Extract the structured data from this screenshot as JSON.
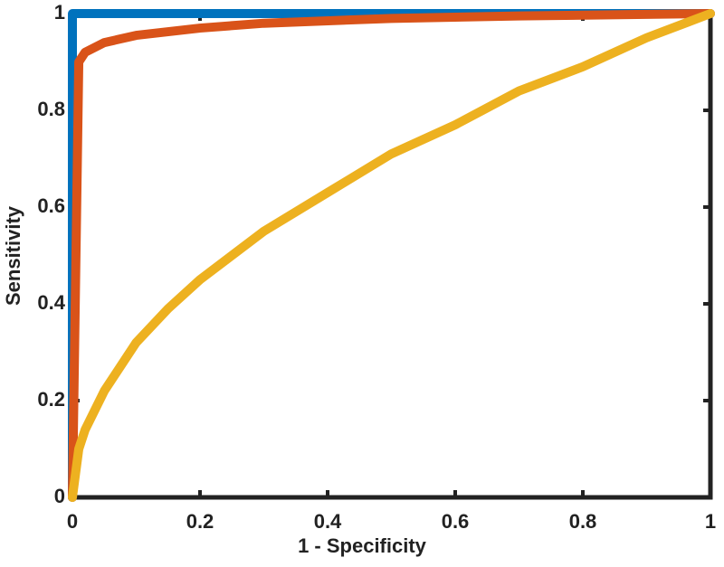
{
  "chart_data": {
    "type": "line",
    "xlabel": "1 - Specificity",
    "ylabel": "Sensitivity",
    "xlim": [
      0,
      1
    ],
    "ylim": [
      0,
      1
    ],
    "xticks": [
      0,
      0.2,
      0.4,
      0.6,
      0.8,
      1
    ],
    "yticks": [
      0,
      0.2,
      0.4,
      0.6,
      0.8,
      1
    ],
    "grid": false,
    "series": [
      {
        "color": "#0072bd",
        "x": [
          0,
          0,
          1
        ],
        "values": [
          0,
          1,
          1
        ]
      },
      {
        "color": "#d95319",
        "x": [
          0,
          0.01,
          0.02,
          0.05,
          0.1,
          0.2,
          0.3,
          0.5,
          0.7,
          1
        ],
        "values": [
          0,
          0.9,
          0.92,
          0.94,
          0.955,
          0.97,
          0.98,
          0.99,
          0.995,
          1
        ]
      },
      {
        "color": "#edb120",
        "x": [
          0,
          0.01,
          0.02,
          0.05,
          0.1,
          0.15,
          0.2,
          0.3,
          0.4,
          0.5,
          0.6,
          0.7,
          0.8,
          0.9,
          1
        ],
        "values": [
          0,
          0.1,
          0.14,
          0.22,
          0.32,
          0.39,
          0.45,
          0.55,
          0.63,
          0.71,
          0.77,
          0.84,
          0.89,
          0.95,
          1
        ]
      }
    ]
  }
}
